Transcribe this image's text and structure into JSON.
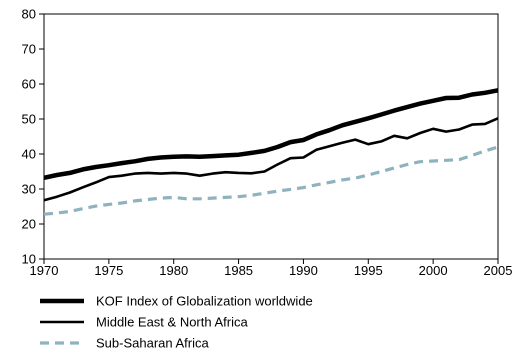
{
  "chart_data": {
    "type": "line",
    "title": "",
    "xlabel": "",
    "ylabel": "",
    "xlim": [
      1970,
      2005
    ],
    "ylim": [
      10,
      80
    ],
    "xticks": [
      1970,
      1975,
      1980,
      1985,
      1990,
      1995,
      2000,
      2005
    ],
    "yticks": [
      10,
      20,
      30,
      40,
      50,
      60,
      70,
      80
    ],
    "grid": false,
    "legend_position": "bottom",
    "x": [
      1970,
      1971,
      1972,
      1973,
      1974,
      1975,
      1976,
      1977,
      1978,
      1979,
      1980,
      1981,
      1982,
      1983,
      1984,
      1985,
      1986,
      1987,
      1988,
      1989,
      1990,
      1991,
      1992,
      1993,
      1994,
      1995,
      1996,
      1997,
      1998,
      1999,
      2000,
      2001,
      2002,
      2003,
      2004,
      2005
    ],
    "series": [
      {
        "name": "KOF Index of Globalization worldwide",
        "color": "#000000",
        "style": "thick",
        "values": [
          33.2,
          34.0,
          34.6,
          35.6,
          36.3,
          36.8,
          37.4,
          37.9,
          38.6,
          39.0,
          39.2,
          39.3,
          39.2,
          39.4,
          39.6,
          39.8,
          40.3,
          40.9,
          42.0,
          43.4,
          44.0,
          45.6,
          46.8,
          48.2,
          49.2,
          50.2,
          51.3,
          52.4,
          53.4,
          54.4,
          55.2,
          56.0,
          56.1,
          57.0,
          57.5,
          58.2
        ]
      },
      {
        "name": "Middle East & North Africa",
        "color": "#000000",
        "style": "solid",
        "values": [
          26.8,
          27.8,
          29.0,
          30.5,
          31.9,
          33.4,
          33.8,
          34.4,
          34.6,
          34.4,
          34.6,
          34.4,
          33.8,
          34.4,
          34.8,
          34.6,
          34.5,
          35.0,
          37.0,
          38.8,
          39.0,
          41.2,
          42.2,
          43.2,
          44.1,
          42.8,
          43.6,
          45.2,
          44.5,
          46.0,
          47.2,
          46.4,
          47.0,
          48.4,
          48.6,
          50.2
        ]
      },
      {
        "name": "Sub-Saharan Africa",
        "color": "#8fb3be",
        "style": "dashed",
        "values": [
          22.8,
          23.1,
          23.6,
          24.4,
          25.1,
          25.6,
          26.0,
          26.6,
          27.0,
          27.4,
          27.6,
          27.2,
          27.2,
          27.4,
          27.6,
          27.8,
          28.2,
          28.8,
          29.4,
          29.9,
          30.4,
          31.2,
          31.9,
          32.6,
          33.1,
          34.0,
          35.0,
          36.0,
          37.0,
          37.8,
          38.0,
          38.2,
          38.4,
          39.6,
          40.9,
          42.0
        ]
      }
    ]
  }
}
